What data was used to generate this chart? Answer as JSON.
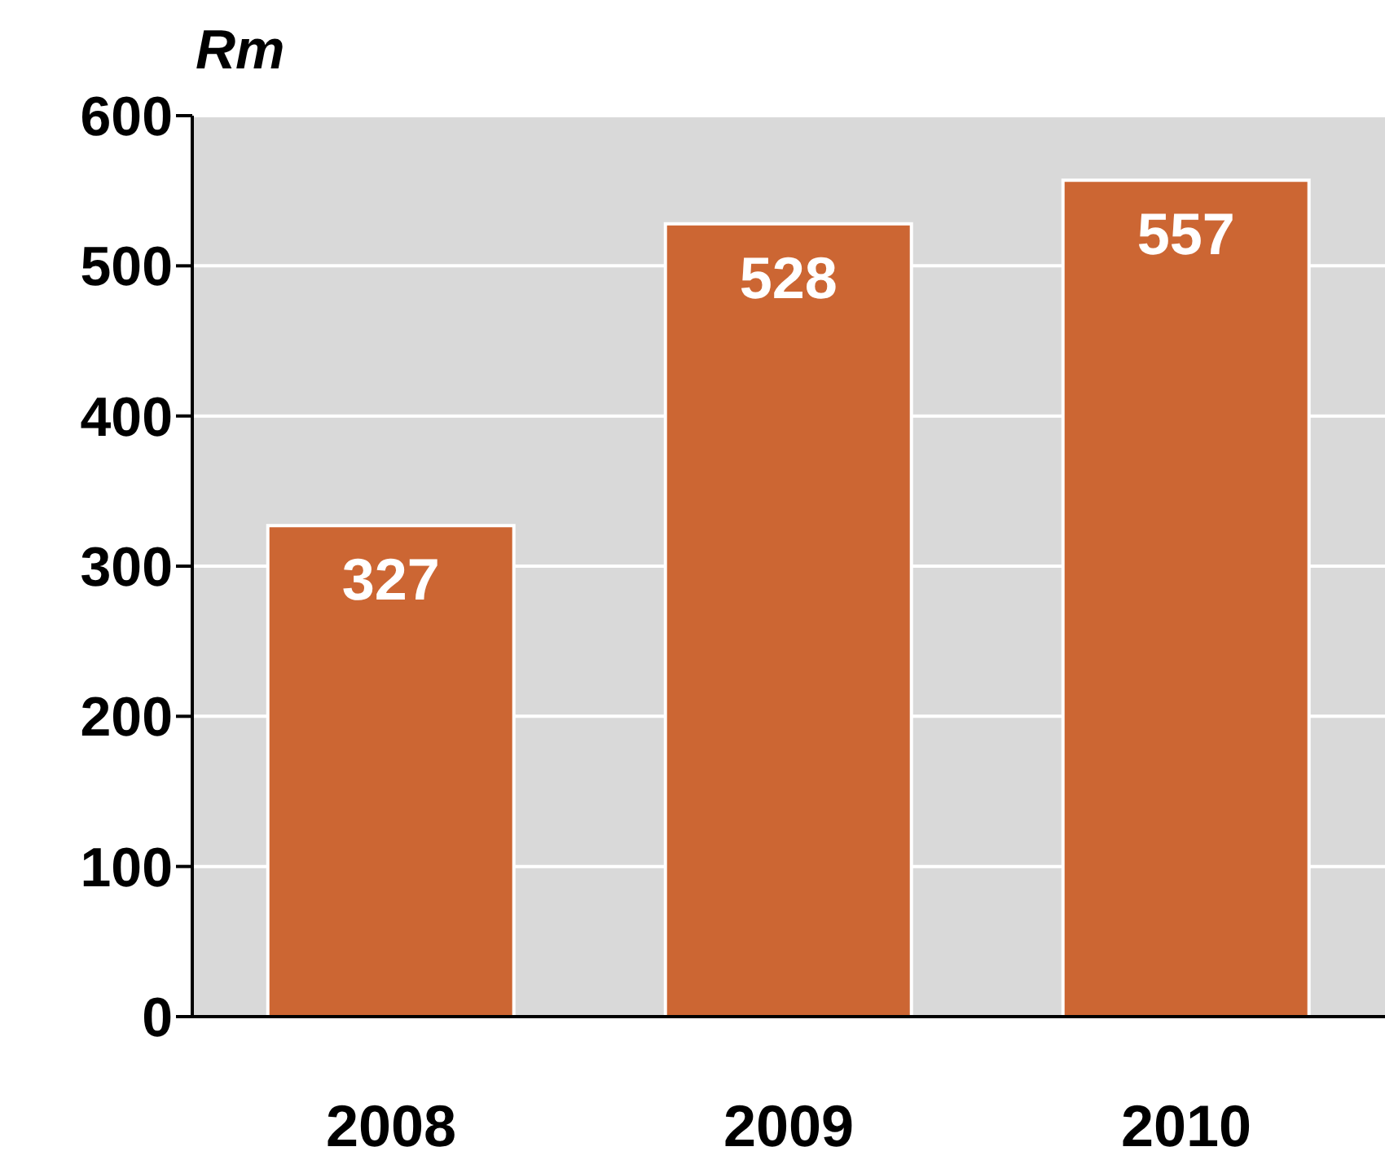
{
  "chart_data": {
    "type": "bar",
    "ylabel": "Rm",
    "categories": [
      "2008",
      "2009",
      "2010"
    ],
    "values": [
      327,
      528,
      557
    ],
    "color": "#cc6633",
    "ylim": [
      0,
      600
    ],
    "yticks": [
      0,
      100,
      200,
      300,
      400,
      500,
      600
    ],
    "grid": "y",
    "data_labels": true
  }
}
